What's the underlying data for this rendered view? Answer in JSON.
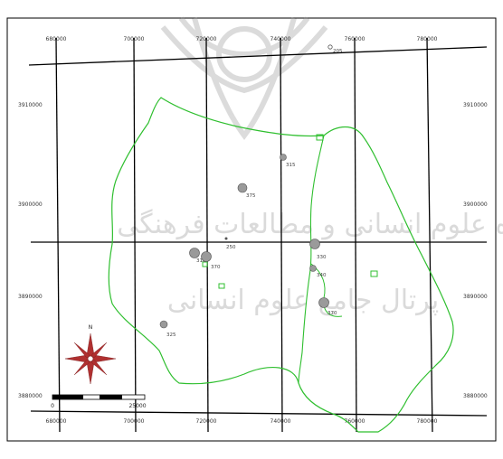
{
  "map": {
    "x_ticks_top": [
      "680000",
      "700000",
      "720000",
      "740000",
      "760000",
      "780000"
    ],
    "x_ticks_bottom": [
      "680000",
      "700000",
      "720000",
      "740000",
      "760000",
      "780000"
    ],
    "y_ticks_left": [
      "3910000",
      "3900000",
      "3890000",
      "3880000"
    ],
    "y_ticks_right": [
      "3910000",
      "3900000",
      "3890000",
      "3880000"
    ],
    "stations": [
      {
        "label": "205",
        "style": "small"
      },
      {
        "label": "315",
        "style": "small"
      },
      {
        "label": "375",
        "style": "large"
      },
      {
        "label": "250",
        "style": "small"
      },
      {
        "label": "318",
        "style": "large"
      },
      {
        "label": "370",
        "style": "large"
      },
      {
        "label": "330",
        "style": "large"
      },
      {
        "label": "340",
        "style": "small"
      },
      {
        "label": "370",
        "style": "large"
      },
      {
        "label": "325",
        "style": "small"
      }
    ],
    "north_label": "N",
    "scale_labels": [
      "0",
      "25000"
    ],
    "watermark": {
      "line1": "پژوهشگاه علوم انسانی و مطالعات فرهنگی",
      "line2": "پرتال جامع علوم انسانی"
    },
    "colors": {
      "grid": "#000000",
      "boundary": "#2fbf2f",
      "station_fill": "#9a9a9a",
      "compass": "#b03030",
      "watermark": "#bdbdbd"
    }
  }
}
